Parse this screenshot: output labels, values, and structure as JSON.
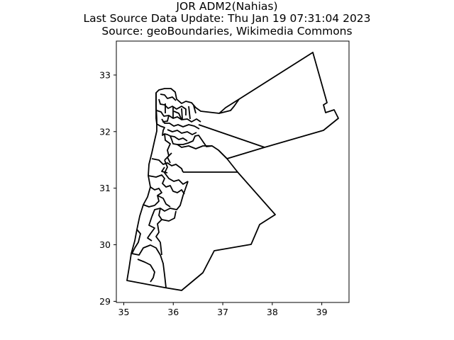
{
  "header": {
    "title": "JOR ADM2(Nahias)",
    "update_line": "Last Source Data Update: Thu Jan 19 07:31:04 2023",
    "source_line": "Source: geoBoundaries, Wikimedia Commons"
  },
  "map": {
    "country": "JOR",
    "level": "ADM2",
    "stroke_color": "#000000",
    "fill_color": "#ffffff"
  },
  "chart_data": {
    "type": "map",
    "title": "JOR ADM2(Nahias)",
    "xlim": [
      34.85,
      39.55
    ],
    "ylim": [
      28.98,
      33.6
    ],
    "x_ticks": [
      "35",
      "36",
      "37",
      "38",
      "39"
    ],
    "y_ticks": [
      "29",
      "30",
      "31",
      "32",
      "33"
    ],
    "x_tick_values": [
      35,
      36,
      37,
      38,
      39
    ],
    "y_tick_values": [
      29,
      30,
      31,
      32,
      33
    ],
    "grid": false,
    "legend": "none"
  }
}
